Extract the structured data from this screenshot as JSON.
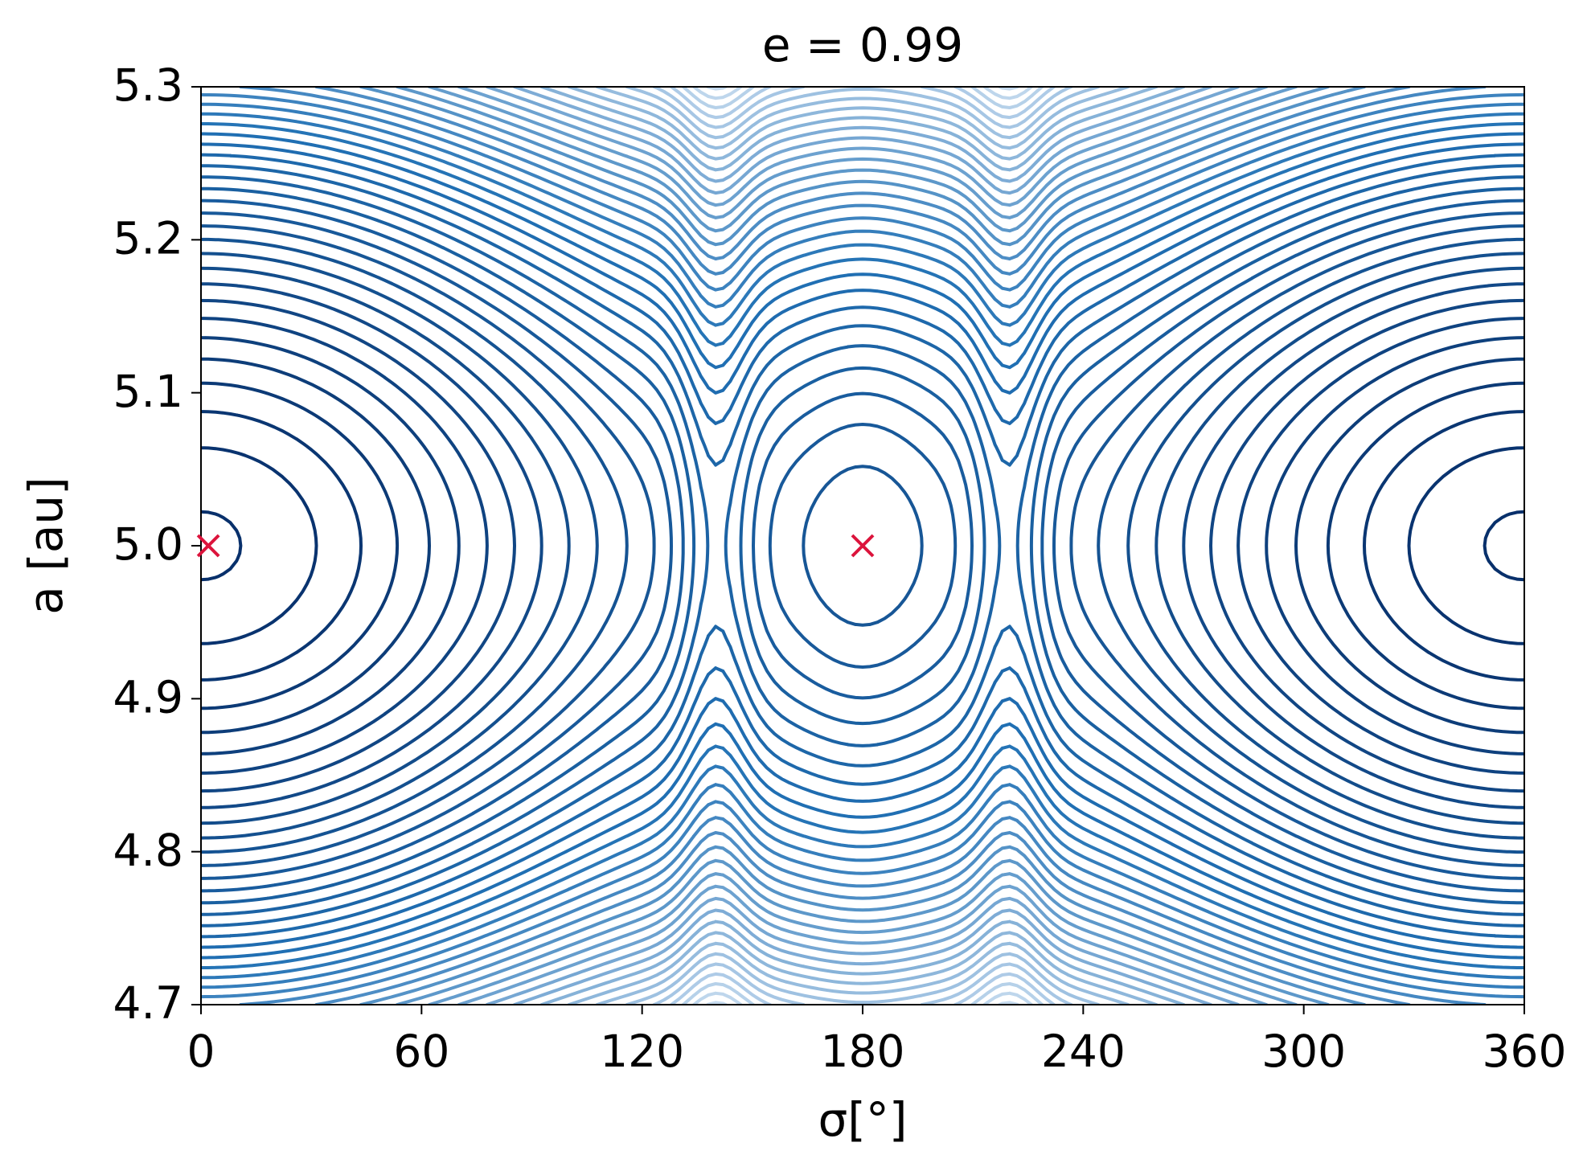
{
  "chart_data": {
    "type": "contour",
    "title": "e = 0.99",
    "xlabel": "σ[°]",
    "ylabel": "a [au]",
    "xlim": [
      0,
      360
    ],
    "ylim": [
      4.7,
      5.3
    ],
    "xticks": [
      0,
      60,
      120,
      180,
      240,
      300,
      360
    ],
    "yticks": [
      4.7,
      4.8,
      4.9,
      {
        "value": 5,
        "label": "5.0"
      },
      5.1,
      5.2,
      5.3
    ],
    "levels": [
      0.0005,
      0.0041,
      0.0077,
      0.0113,
      0.0149,
      0.0185,
      0.0221,
      0.0257,
      0.0293,
      0.0329,
      0.0365,
      0.0401,
      0.0437,
      0.0473,
      0.0509,
      0.0545,
      0.0581,
      0.0617,
      0.0653,
      0.0689,
      0.0725,
      0.0761,
      0.0797,
      0.0833,
      0.0869,
      0.0905,
      0.0941,
      0.0977,
      0.1013,
      0.1049,
      0.1085,
      0.1121,
      0.1157,
      0.1193,
      0.1229,
      0.1265,
      0.1301,
      0.1337,
      0.1373,
      0.1409,
      0.1445,
      0.1481
    ],
    "colormap": [
      "#08306b",
      "#2171b5",
      "#c6dbef"
    ],
    "points": {
      "x": [
        2,
        180
      ],
      "y": [
        5,
        5
      ],
      "color": "#dc143c"
    }
  }
}
